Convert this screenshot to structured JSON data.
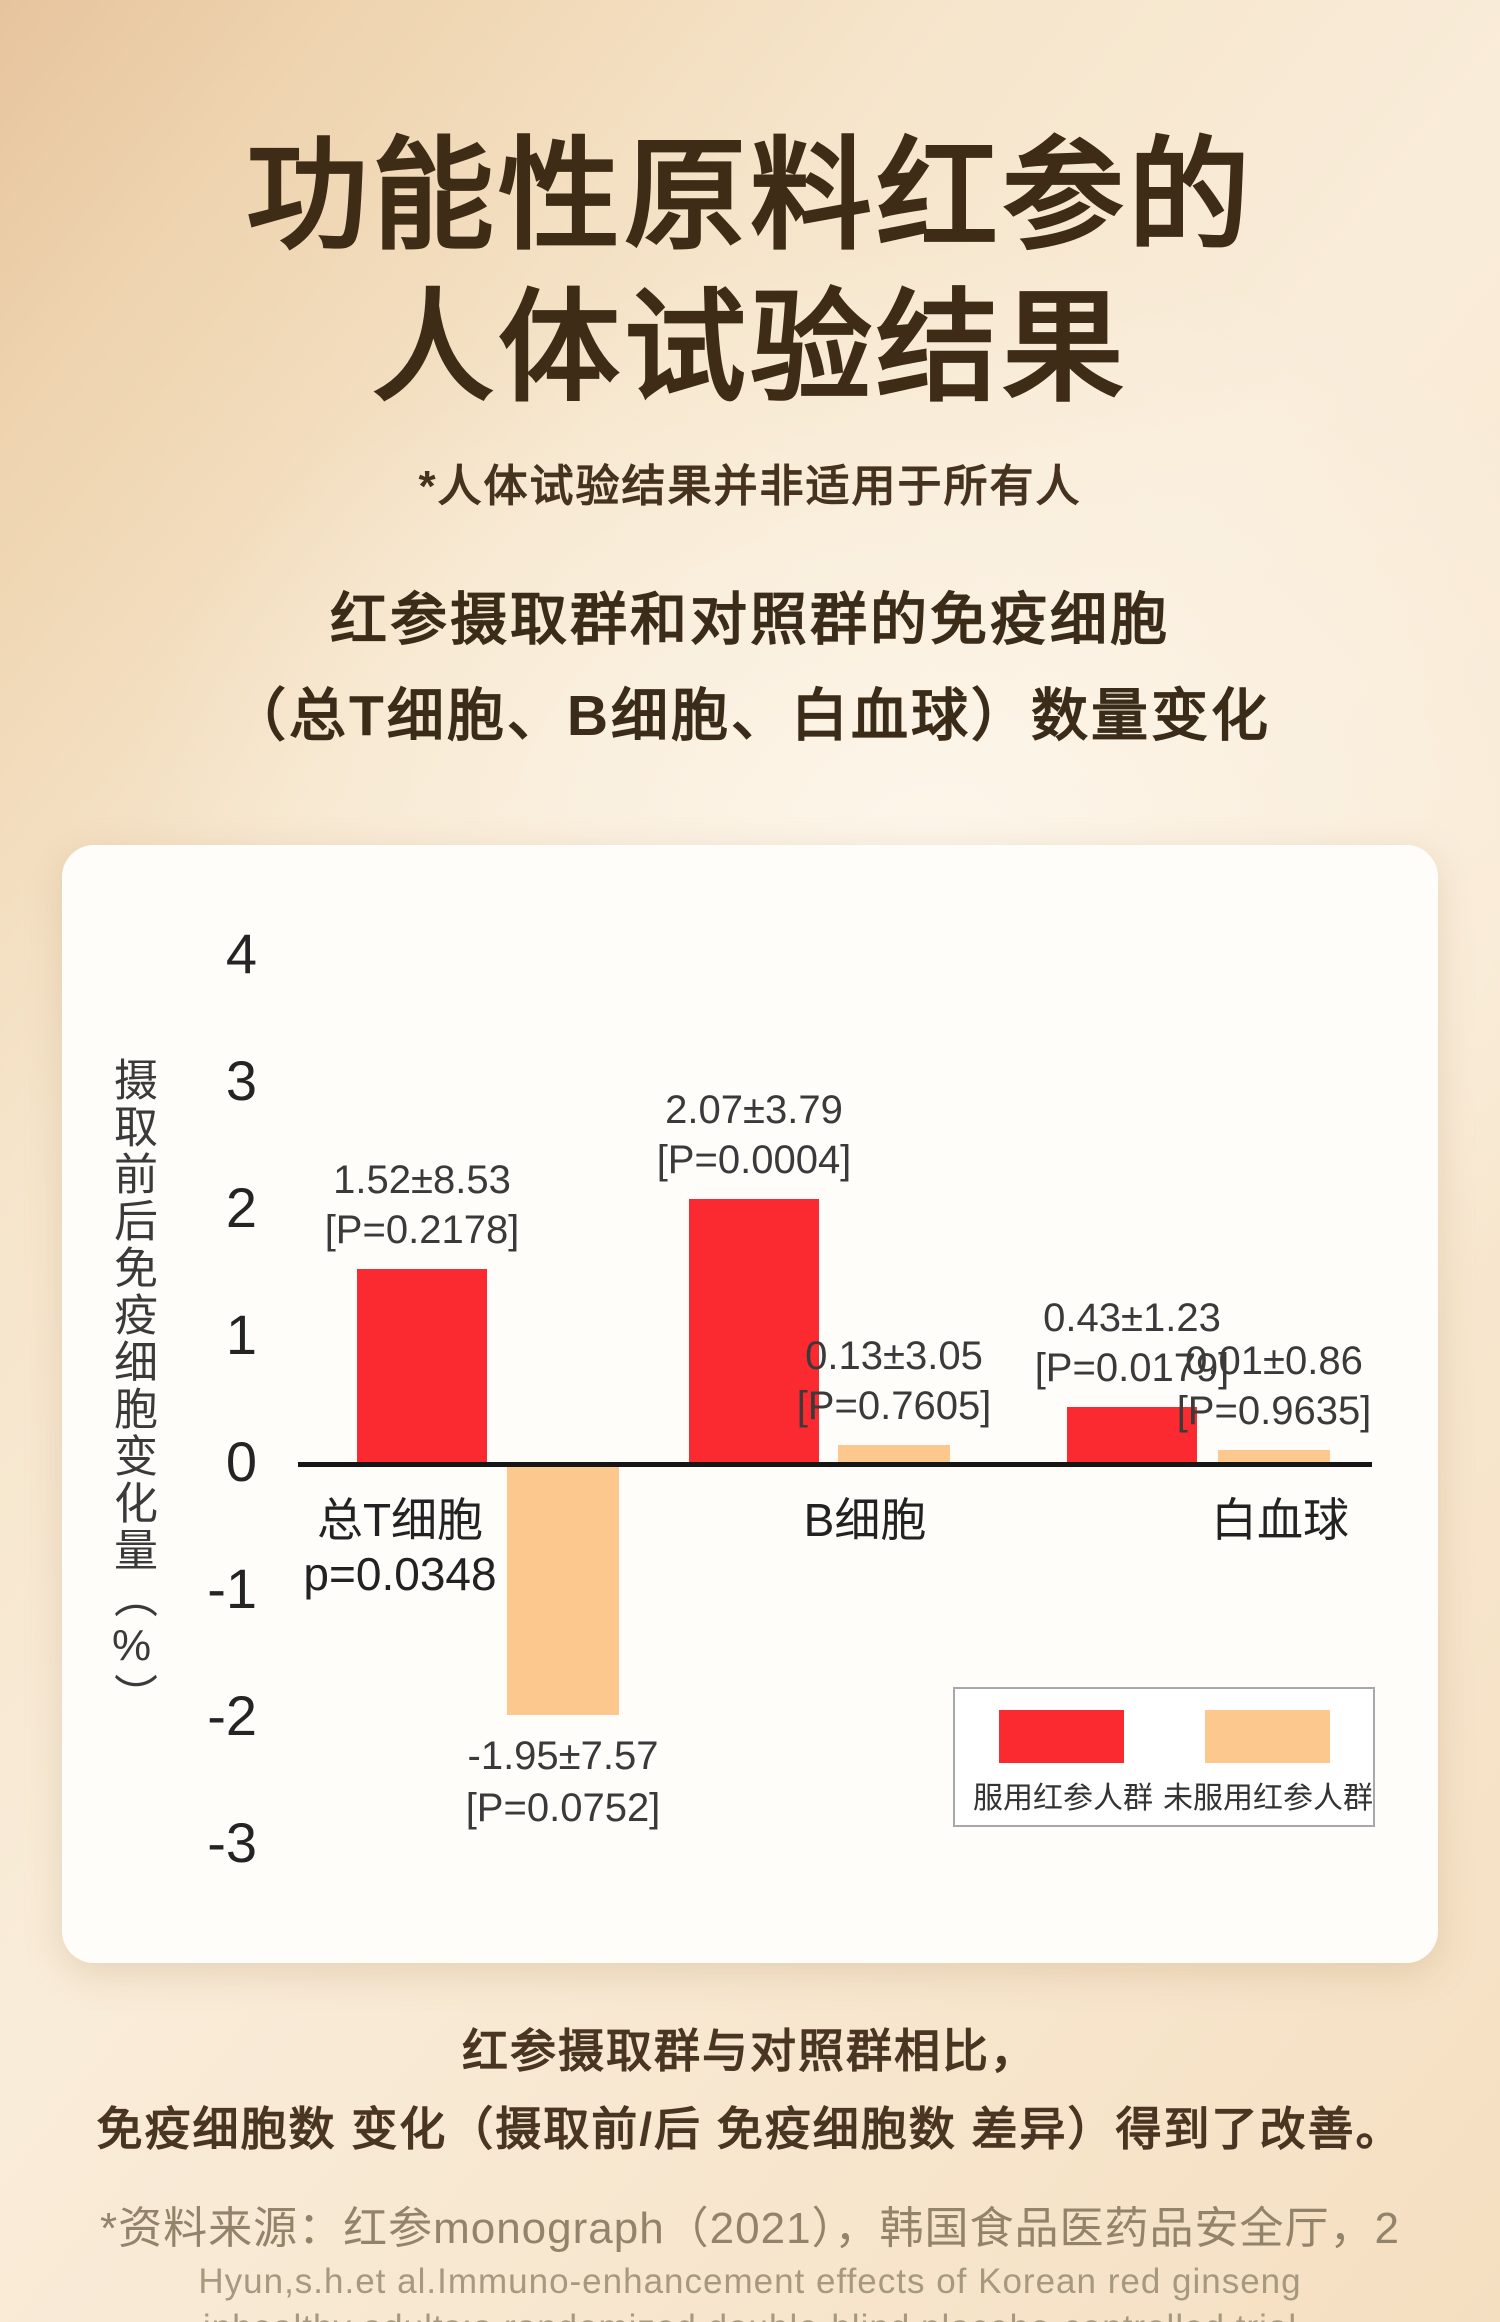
{
  "header": {
    "title_line1": "功能性原料红参的",
    "title_line2": "人体试验结果",
    "disclaimer": "*人体试验结果并非适用于所有人",
    "section_line1": "红参摄取群和对照群的免疫细胞",
    "section_line2": "（总T细胞、B细胞、白血球）数量变化"
  },
  "chart_data": {
    "type": "bar",
    "ylabel": "摄取前后免疫细胞变化量（%）",
    "ylim": [
      -3,
      4
    ],
    "yticks": [
      4,
      3,
      2,
      1,
      0,
      -1,
      -2,
      -3
    ],
    "grid": false,
    "legend_position": "inside-bottom-right",
    "categories": [
      "总T细胞",
      "B细胞",
      "白血球"
    ],
    "category_notes": [
      "p=0.0348",
      "",
      ""
    ],
    "series": [
      {
        "name": "服用红参人群",
        "color": "#fb2a31",
        "values": [
          1.52,
          2.07,
          0.43
        ],
        "value_labels": [
          "1.52±8.53",
          "2.07±3.79",
          "0.43±1.23"
        ],
        "p_labels": [
          "[P=0.2178]",
          "[P=0.0004]",
          "[P=0.0179]"
        ]
      },
      {
        "name": "未服用红参人群",
        "color": "#fdc88e",
        "values": [
          -1.95,
          0.13,
          0.01
        ],
        "value_labels": [
          "-1.95±7.57",
          "0.13±3.05",
          "0.01±0.86"
        ],
        "p_labels": [
          "[P=0.0752]",
          "[P=0.7605]",
          "[P=0.9635]"
        ]
      }
    ]
  },
  "footer": {
    "conclusion_line1": "红参摄取群与对照群相比，",
    "conclusion_line2": "免疫细胞数 变化（摄取前/后 免疫细胞数 差异）得到了改善。",
    "source_line1": "*资料来源：红参monograph（2021），韩国食品医药品安全厅，2",
    "source_line2": "Hyun,s.h.et al.Immuno-enhancement effects of Korean red ginseng",
    "source_line3": "inhealthy adults:a randomized double-blind placebo-controlled trial"
  },
  "colors": {
    "treated_bar": "#fb2a31",
    "control_bar": "#fdc88e",
    "card_bg": "#fffdfa",
    "title_text": "#3e2c17",
    "axis_line": "#161616"
  }
}
